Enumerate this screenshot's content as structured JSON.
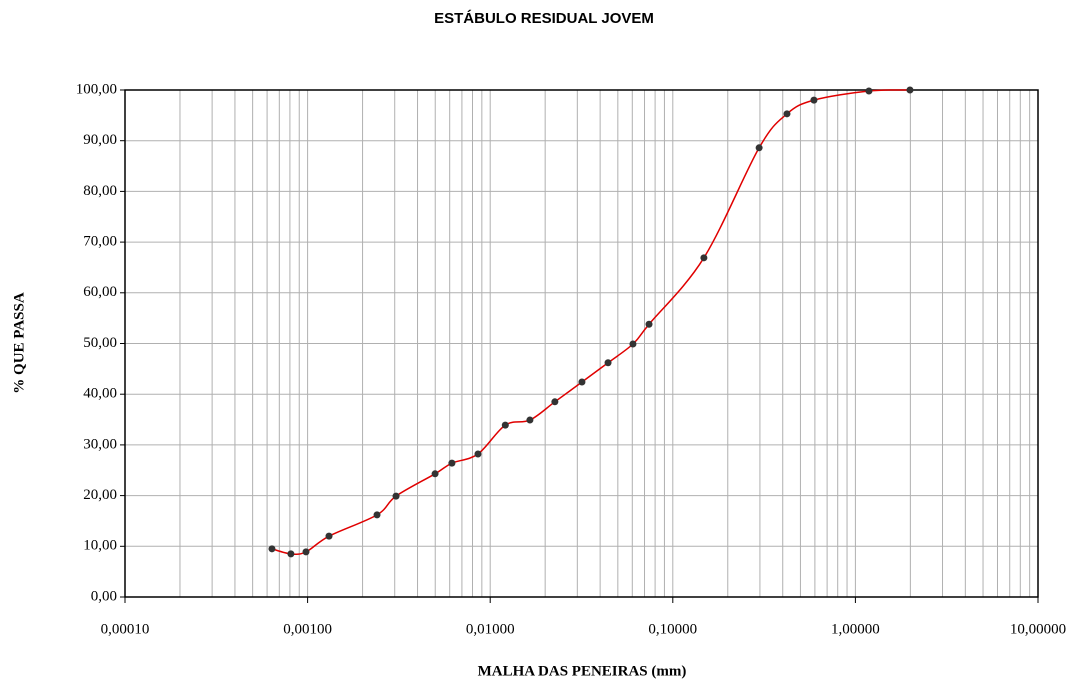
{
  "chart_data": {
    "type": "scatter",
    "title": "ESTÁBULO RESIDUAL JOVEM",
    "x_label": "MALHA DAS PENEIRAS (mm)",
    "y_label": "% QUE PASSA",
    "x": [
      0.000638,
      0.00081,
      0.00098,
      0.00131,
      0.0024,
      0.00305,
      0.00499,
      0.00617,
      0.00857,
      0.0121,
      0.0165,
      0.0226,
      0.0318,
      0.0442,
      0.0605,
      0.0741,
      0.148,
      0.297,
      0.422,
      0.593,
      1.186,
      1.99
    ],
    "values": [
      9.5,
      8.5,
      8.9,
      12.0,
      16.2,
      19.9,
      24.3,
      26.4,
      28.2,
      33.9,
      34.9,
      38.5,
      42.4,
      46.2,
      49.9,
      53.8,
      66.9,
      88.6,
      95.3,
      98.0,
      99.8,
      100
    ],
    "color": "#e00000",
    "marker_color": "#333333",
    "log_x": true,
    "grid": true,
    "xlim": [
      0.0001,
      10
    ],
    "xticks": [
      {
        "value": 0.0001,
        "label": "0,00010"
      },
      {
        "value": 0.001,
        "label": "0,00100"
      },
      {
        "value": 0.01,
        "label": "0,01000"
      },
      {
        "value": 0.1,
        "label": "0,10000"
      },
      {
        "value": 1,
        "label": "1,00000"
      },
      {
        "value": 10,
        "label": "10,00000"
      }
    ],
    "ylim": [
      0,
      100
    ],
    "yticks": [
      {
        "value": 0,
        "label": "0,00"
      },
      {
        "value": 10,
        "label": "10,00"
      },
      {
        "value": 20,
        "label": "20,00"
      },
      {
        "value": 30,
        "label": "30,00"
      },
      {
        "value": 40,
        "label": "40,00"
      },
      {
        "value": 50,
        "label": "50,00"
      },
      {
        "value": 60,
        "label": "60,00"
      },
      {
        "value": 70,
        "label": "70,00"
      },
      {
        "value": 80,
        "label": "80,00"
      },
      {
        "value": 90,
        "label": "90,00"
      },
      {
        "value": 100,
        "label": "100,00"
      }
    ]
  }
}
